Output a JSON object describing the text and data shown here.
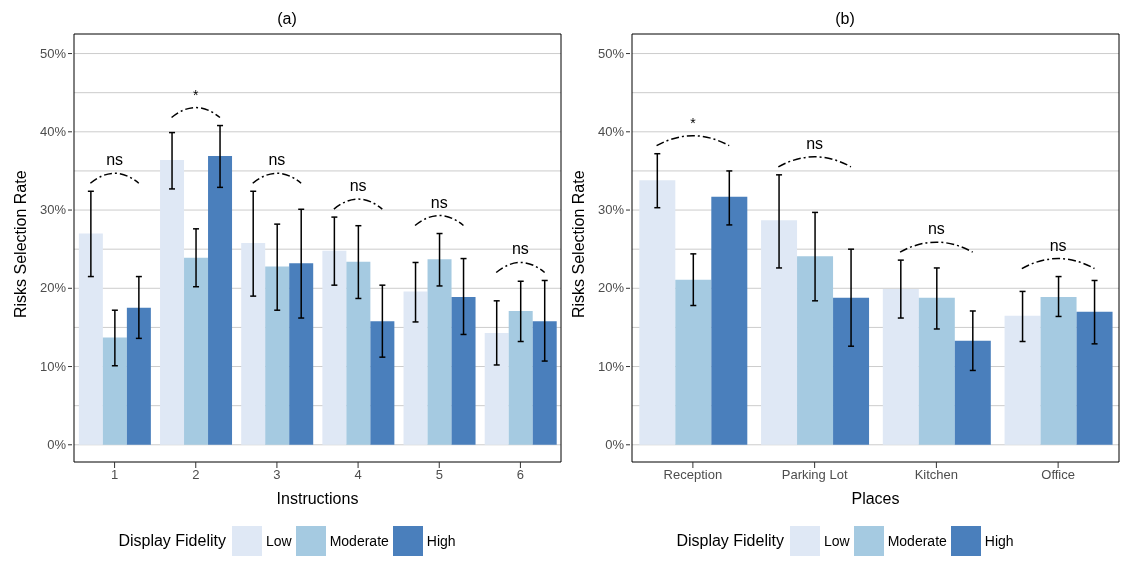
{
  "chart_data": [
    {
      "type": "bar",
      "title": "(a)",
      "xlabel": "Instructions",
      "ylabel": "Risks Selection Rate",
      "legend_title": "Display Fidelity",
      "legend": "bottom",
      "grid": "y",
      "categories": [
        "1",
        "2",
        "3",
        "4",
        "5",
        "6"
      ],
      "ylim": [
        -2.2,
        52.5
      ],
      "yticks": [
        {
          "value": 0,
          "label": "0%"
        },
        {
          "value": 5,
          "label": null
        },
        {
          "value": 10,
          "label": "10%"
        },
        {
          "value": 15,
          "label": null
        },
        {
          "value": 20,
          "label": "20%"
        },
        {
          "value": 25,
          "label": null
        },
        {
          "value": 30,
          "label": "30%"
        },
        {
          "value": 35,
          "label": null
        },
        {
          "value": 40,
          "label": "40%"
        },
        {
          "value": 45,
          "label": null
        },
        {
          "value": 50,
          "label": "50%"
        }
      ],
      "series": [
        {
          "name": "Low",
          "color": "#dfe8f5",
          "values": [
            27.0,
            36.4,
            25.8,
            24.8,
            19.6,
            14.3
          ],
          "errors": [
            [
              21.5,
              32.4
            ],
            [
              32.7,
              39.9
            ],
            [
              19.0,
              32.4
            ],
            [
              20.4,
              29.1
            ],
            [
              15.7,
              23.3
            ],
            [
              10.2,
              18.4
            ]
          ]
        },
        {
          "name": "Moderate",
          "color": "#a5cae1",
          "values": [
            13.7,
            23.9,
            22.8,
            23.4,
            23.7,
            17.1
          ],
          "errors": [
            [
              10.1,
              17.2
            ],
            [
              20.2,
              27.6
            ],
            [
              17.2,
              28.2
            ],
            [
              18.7,
              28.0
            ],
            [
              20.3,
              27.0
            ],
            [
              13.2,
              20.9
            ]
          ]
        },
        {
          "name": "High",
          "color": "#4a7fbc",
          "values": [
            17.5,
            36.9,
            23.2,
            15.8,
            18.9,
            15.8
          ],
          "errors": [
            [
              13.6,
              21.5
            ],
            [
              32.9,
              40.8
            ],
            [
              16.2,
              30.1
            ],
            [
              11.2,
              20.4
            ],
            [
              14.1,
              23.8
            ],
            [
              10.7,
              21.0
            ]
          ]
        }
      ],
      "annotations": [
        "ns",
        "*",
        "ns",
        "ns",
        "ns",
        "ns"
      ]
    },
    {
      "type": "bar",
      "title": "(b)",
      "xlabel": "Places",
      "ylabel": "Risks Selection Rate",
      "legend_title": "Display Fidelity",
      "legend": "bottom",
      "grid": "y",
      "categories": [
        "Reception",
        "Parking Lot",
        "Kitchen",
        "Office"
      ],
      "ylim": [
        -2.2,
        52.5
      ],
      "yticks": [
        {
          "value": 0,
          "label": "0%"
        },
        {
          "value": 5,
          "label": null
        },
        {
          "value": 10,
          "label": "10%"
        },
        {
          "value": 15,
          "label": null
        },
        {
          "value": 20,
          "label": "20%"
        },
        {
          "value": 25,
          "label": null
        },
        {
          "value": 30,
          "label": "30%"
        },
        {
          "value": 35,
          "label": null
        },
        {
          "value": 40,
          "label": "40%"
        },
        {
          "value": 45,
          "label": null
        },
        {
          "value": 50,
          "label": "50%"
        }
      ],
      "series": [
        {
          "name": "Low",
          "color": "#dfe8f5",
          "values": [
            33.8,
            28.7,
            19.9,
            16.5
          ],
          "errors": [
            [
              30.3,
              37.2
            ],
            [
              22.6,
              34.5
            ],
            [
              16.2,
              23.6
            ],
            [
              13.2,
              19.6
            ]
          ]
        },
        {
          "name": "Moderate",
          "color": "#a5cae1",
          "values": [
            21.1,
            24.1,
            18.8,
            18.9
          ],
          "errors": [
            [
              17.8,
              24.4
            ],
            [
              18.4,
              29.7
            ],
            [
              14.8,
              22.6
            ],
            [
              16.4,
              21.5
            ]
          ]
        },
        {
          "name": "High",
          "color": "#4a7fbc",
          "values": [
            31.7,
            18.8,
            13.3,
            17.0
          ],
          "errors": [
            [
              28.1,
              35.0
            ],
            [
              12.6,
              25.0
            ],
            [
              9.5,
              17.1
            ],
            [
              12.9,
              21.0
            ]
          ]
        }
      ],
      "annotations": [
        "*",
        "ns",
        "ns",
        "ns"
      ]
    }
  ]
}
